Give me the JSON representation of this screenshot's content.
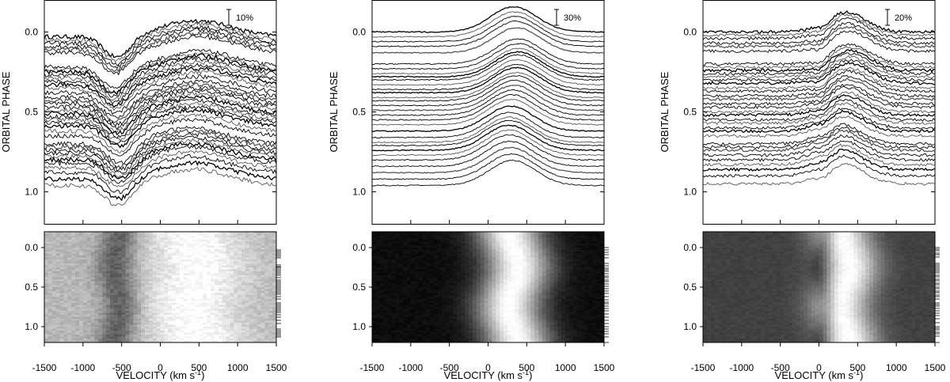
{
  "chart_data": [
    {
      "type": "line",
      "panel": "left",
      "ylabel": "ORBITAL PHASE",
      "xlabel": "VELOCITY (km s",
      "xlabel_sup": "-1",
      "xlabel_suffix": ")",
      "xlim": [
        -1500,
        1500
      ],
      "ylim_top": [
        -0.2,
        1.2
      ],
      "ylim_bottom": [
        -0.2,
        1.2
      ],
      "xticks": [
        "-1500",
        "-1000",
        "-500",
        "0",
        "500",
        "1000",
        "1500"
      ],
      "xtick_values": [
        -1500,
        -1000,
        -500,
        0,
        500,
        1000,
        1500
      ],
      "yticks": [
        "0.0",
        "0.5",
        "1.0"
      ],
      "ytick_values": [
        0.0,
        0.5,
        1.0
      ],
      "yticks_bottom": [
        "0.0",
        "0.5",
        "1.0"
      ],
      "ytick_values_bottom": [
        0.0,
        0.5,
        1.0
      ],
      "scale_bar_label": "10%",
      "profile": {
        "peak_v": 450,
        "peak_amp": 0.045,
        "peak_width": 450,
        "abs_v": -550,
        "abs_amp": 0.06,
        "abs_width": 170,
        "noise": 0.006
      },
      "trail_phases": [
        0.03,
        0.05,
        0.07,
        0.09,
        0.11,
        0.13,
        0.22,
        0.24,
        0.25,
        0.27,
        0.29,
        0.31,
        0.33,
        0.35,
        0.38,
        0.41,
        0.43,
        0.45,
        0.47,
        0.49,
        0.51,
        0.53,
        0.55,
        0.57,
        0.59,
        0.62,
        0.65,
        0.7,
        0.72,
        0.74,
        0.76,
        0.78,
        0.8,
        0.82,
        0.85,
        0.88,
        0.92,
        0.96
      ]
    },
    {
      "type": "line",
      "panel": "middle",
      "ylabel": "ORBITAL PHASE",
      "xlabel": "VELOCITY (km s",
      "xlabel_sup": "-1",
      "xlabel_suffix": ")",
      "xlim": [
        -1500,
        1500
      ],
      "ylim_top": [
        -0.2,
        1.2
      ],
      "ylim_bottom": [
        -0.2,
        1.2
      ],
      "xticks": [
        "-1500",
        "-1000",
        "-500",
        "0",
        "500",
        "1000",
        "1500"
      ],
      "xtick_values": [
        -1500,
        -1000,
        -500,
        0,
        500,
        1000,
        1500
      ],
      "yticks": [
        "0.0",
        "0.5",
        "1.0"
      ],
      "ytick_values": [
        0.0,
        0.5,
        1.0
      ],
      "yticks_bottom": [
        "0.0",
        "0.5",
        "1.0"
      ],
      "ytick_values_bottom": [
        0.0,
        0.5,
        1.0
      ],
      "scale_bar_label": "30%",
      "profile": {
        "peak_v": 330,
        "peak_amp": 0.07,
        "peak_width": 300,
        "abs_v": 0,
        "abs_amp": 0,
        "abs_width": 100,
        "noise": 0.0015
      },
      "trail_phases": [
        0.0,
        0.03,
        0.06,
        0.09,
        0.13,
        0.2,
        0.23,
        0.26,
        0.28,
        0.3,
        0.33,
        0.36,
        0.38,
        0.41,
        0.43,
        0.46,
        0.49,
        0.52,
        0.55,
        0.58,
        0.62,
        0.66,
        0.69,
        0.71,
        0.74,
        0.77,
        0.8,
        0.84,
        0.88,
        0.92,
        0.96
      ]
    },
    {
      "type": "line",
      "panel": "right",
      "ylabel": "ORBITAL PHASE",
      "xlabel": "VELOCITY (km s",
      "xlabel_sup": "-1",
      "xlabel_suffix": ")",
      "xlim": [
        -1500,
        1500
      ],
      "ylim_top": [
        -0.2,
        1.2
      ],
      "ylim_bottom": [
        -0.2,
        1.2
      ],
      "xticks": [
        "-1500",
        "-1000",
        "-500",
        "0",
        "500",
        "1000",
        "1500"
      ],
      "xtick_values": [
        -1500,
        -1000,
        -500,
        0,
        500,
        1000,
        1500
      ],
      "yticks": [
        "0.0",
        "0.5",
        "1.0"
      ],
      "ytick_values": [
        0.0,
        0.5,
        1.0
      ],
      "yticks_bottom": [
        "0.0",
        "0.5",
        "1.0"
      ],
      "ytick_values_bottom": [
        0.0,
        0.5,
        1.0
      ],
      "scale_bar_label": "20%",
      "profile": {
        "peak_v": 340,
        "peak_amp": 0.055,
        "peak_width": 260,
        "abs_v": 60,
        "abs_amp": 0.015,
        "abs_width": 90,
        "noise": 0.004
      },
      "trail_phases": [
        0.0,
        0.02,
        0.04,
        0.07,
        0.09,
        0.12,
        0.2,
        0.22,
        0.24,
        0.26,
        0.28,
        0.3,
        0.32,
        0.35,
        0.37,
        0.4,
        0.42,
        0.45,
        0.47,
        0.5,
        0.52,
        0.55,
        0.57,
        0.6,
        0.62,
        0.65,
        0.7,
        0.72,
        0.74,
        0.77,
        0.8,
        0.83,
        0.86,
        0.9,
        0.95
      ]
    }
  ]
}
